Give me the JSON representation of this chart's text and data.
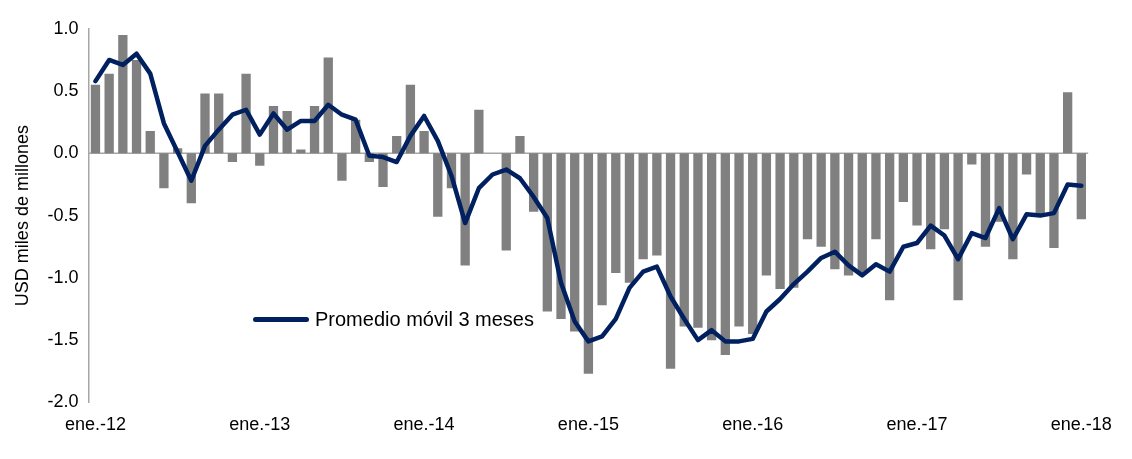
{
  "chart_data": {
    "type": "bar",
    "ylabel": "USD miles de millones",
    "categories": [
      "ene.-12",
      null,
      null,
      null,
      null,
      null,
      null,
      null,
      null,
      null,
      null,
      null,
      "ene.-13",
      null,
      null,
      null,
      null,
      null,
      null,
      null,
      null,
      null,
      null,
      null,
      "ene.-14",
      null,
      null,
      null,
      null,
      null,
      null,
      null,
      null,
      null,
      null,
      null,
      "ene.-15",
      null,
      null,
      null,
      null,
      null,
      null,
      null,
      null,
      null,
      null,
      null,
      "ene.-16",
      null,
      null,
      null,
      null,
      null,
      null,
      null,
      null,
      null,
      null,
      null,
      "ene.-17",
      null,
      null,
      null,
      null,
      null,
      null,
      null,
      null,
      null,
      null,
      null,
      "ene.-18"
    ],
    "series": [
      {
        "type": "bar",
        "color": "#808080",
        "values": [
          0.55,
          0.64,
          0.95,
          0.75,
          0.18,
          -0.28,
          0.04,
          -0.4,
          0.48,
          0.48,
          -0.07,
          0.64,
          -0.1,
          0.38,
          0.34,
          0.03,
          0.38,
          0.77,
          -0.22,
          0.27,
          -0.07,
          -0.27,
          0.14,
          0.55,
          0.18,
          -0.51,
          -0.28,
          -0.9,
          0.35,
          0,
          -0.78,
          0.14,
          -0.47,
          -1.27,
          -1.33,
          -1.43,
          -1.77,
          -1.22,
          -0.96,
          -1.04,
          -0.85,
          -0.82,
          -1.73,
          -1.39,
          -1.4,
          -1.5,
          -1.62,
          -1.39,
          -1.45,
          -0.98,
          -1.09,
          -1.08,
          -0.69,
          -0.75,
          -0.93,
          -0.98,
          -0.96,
          -0.69,
          -1.18,
          -0.39,
          -0.58,
          -0.77,
          -0.61,
          -1.18,
          -0.09,
          -0.75,
          -0.55,
          -0.85,
          -0.17,
          -0.5,
          -0.76,
          0.49,
          -0.53
        ]
      },
      {
        "type": "line",
        "name": "Promedio móvil 3 meses",
        "color": "#002060",
        "values": [
          0.58,
          0.75,
          0.71,
          0.8,
          0.64,
          0.24,
          0.01,
          -0.22,
          0.06,
          0.19,
          0.31,
          0.35,
          0.15,
          0.32,
          0.19,
          0.26,
          0.26,
          0.39,
          0.31,
          0.27,
          -0.02,
          -0.03,
          -0.07,
          0.14,
          0.3,
          0.1,
          -0.18,
          -0.56,
          -0.28,
          -0.17,
          -0.13,
          -0.2,
          -0.35,
          -0.52,
          -1.04,
          -1.35,
          -1.51,
          -1.47,
          -1.33,
          -1.08,
          -0.95,
          -0.91,
          -1.15,
          -1.33,
          -1.5,
          -1.42,
          -1.51,
          -1.51,
          -1.49,
          -1.27,
          -1.17,
          -1.05,
          -0.95,
          -0.84,
          -0.79,
          -0.9,
          -0.98,
          -0.89,
          -0.95,
          -0.75,
          -0.72,
          -0.58,
          -0.66,
          -0.85,
          -0.64,
          -0.68,
          -0.44,
          -0.69,
          -0.49,
          -0.5,
          -0.48,
          -0.25,
          -0.26
        ]
      }
    ],
    "ylim": [
      -2,
      1
    ],
    "yticks": [
      {
        "value": 1,
        "label": "1.0"
      },
      {
        "value": 0.5,
        "label": "0.5"
      },
      {
        "value": 0,
        "label": "0.0"
      },
      {
        "value": -0.5,
        "label": "-0.5"
      },
      {
        "value": -1,
        "label": "-1.0"
      },
      {
        "value": -1.5,
        "label": "-1.5"
      },
      {
        "value": -2,
        "label": "-2.0"
      }
    ],
    "legend": "bottom left",
    "marker": "none",
    "line_style": "solid"
  }
}
